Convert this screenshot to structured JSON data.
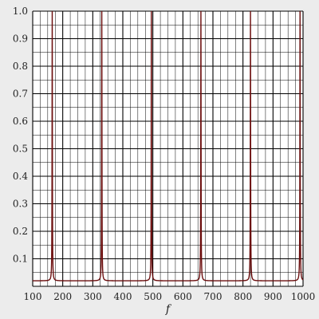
{
  "chart_data": {
    "type": "line",
    "title": "",
    "xlabel": "f",
    "ylabel": "",
    "xlim": [
      100,
      1000
    ],
    "ylim": [
      0,
      1
    ],
    "grid": true,
    "x_ticks": [
      "100",
      "200",
      "300",
      "400",
      "500",
      "600",
      "700",
      "800",
      "900",
      "1000"
    ],
    "y_ticks": [
      "0.1",
      "0.2",
      "0.3",
      "0.4",
      "0.5",
      "0.6",
      "0.7",
      "0.8",
      "0.9",
      "1.0"
    ],
    "x_tick_values": [
      100,
      200,
      300,
      400,
      500,
      600,
      700,
      800,
      900,
      1000
    ],
    "y_tick_values": [
      0.1,
      0.2,
      0.3,
      0.4,
      0.5,
      0.6,
      0.7,
      0.8,
      0.9,
      1.0
    ],
    "series": [
      {
        "color": "#6b0d0d",
        "baseline": 0.02,
        "resonances": [
          165,
          330,
          495,
          660,
          825,
          990
        ],
        "peak": 1.0
      }
    ],
    "colors": {
      "background": "#ececec",
      "plot_background": "#ffffff",
      "grid": "#000000",
      "line": "#6b0d0d"
    }
  }
}
